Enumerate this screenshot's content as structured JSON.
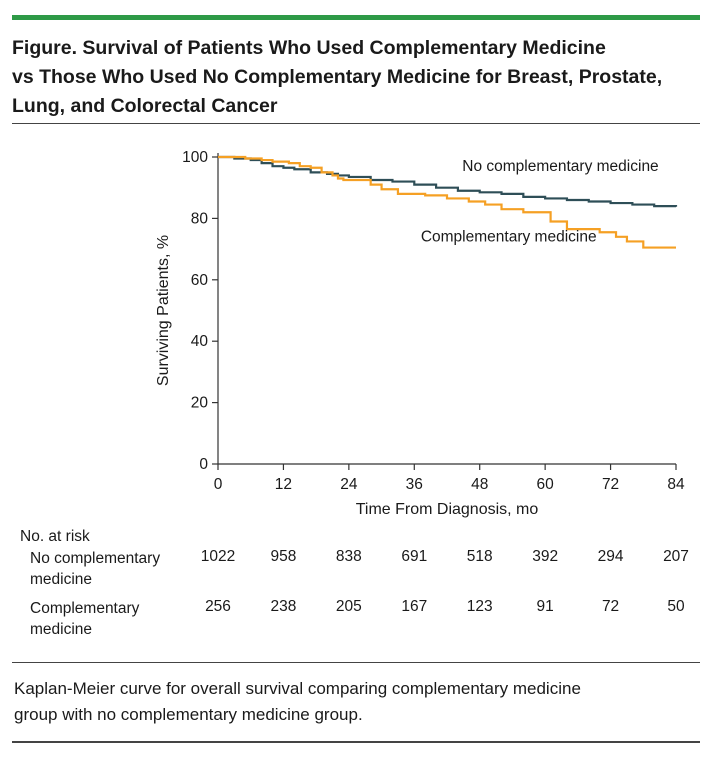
{
  "figure": {
    "title_lines": [
      "Figure. Survival of Patients Who Used Complementary Medicine",
      "vs Those Who Used No Complementary Medicine for Breast, Prostate,",
      "Lung, and Colorectal Cancer"
    ],
    "caption_lines": [
      "Kaplan-Meier curve for overall survival comparing complementary medicine",
      "group with no complementary medicine group."
    ],
    "accent_color": "#2e9a47"
  },
  "chart_data": {
    "type": "line",
    "step": true,
    "xlabel": "Time From Diagnosis, mo",
    "ylabel": "Surviving Patients, %",
    "xlim": [
      0,
      84
    ],
    "ylim": [
      0,
      100
    ],
    "xticks": [
      0,
      12,
      24,
      36,
      48,
      60,
      72,
      84
    ],
    "yticks": [
      0,
      20,
      40,
      60,
      80,
      100
    ],
    "grid": false,
    "series": [
      {
        "name": "No complementary medicine",
        "color": "#2e4e57",
        "x": [
          0,
          3,
          6,
          8,
          10,
          12,
          14,
          17,
          20,
          22,
          24,
          28,
          32,
          36,
          40,
          44,
          48,
          52,
          56,
          60,
          64,
          68,
          72,
          76,
          80,
          84
        ],
        "y": [
          100,
          99.5,
          99,
          98,
          97,
          96.5,
          96,
          95,
          94.5,
          94,
          93.5,
          92.5,
          92,
          91,
          90,
          89,
          88.5,
          88,
          87,
          86.5,
          86,
          85.5,
          85,
          84.5,
          84,
          83.8
        ]
      },
      {
        "name": "Complementary medicine",
        "color": "#f5a024",
        "x": [
          0,
          5,
          8,
          10,
          13,
          15,
          17,
          19,
          21,
          22,
          23,
          28,
          30,
          33,
          38,
          42,
          46,
          49,
          52,
          56,
          61,
          64,
          70,
          73,
          75,
          78,
          84
        ],
        "y": [
          100,
          99.5,
          99,
          98.5,
          98,
          97,
          96.5,
          95,
          94,
          93,
          92.5,
          91,
          89.5,
          88,
          87.5,
          86.5,
          85.5,
          84.5,
          83,
          82,
          79,
          76.5,
          75.5,
          74,
          72.5,
          70.5,
          70.5
        ]
      }
    ],
    "annotations": [
      {
        "text": "No complementary medicine",
        "x": 44.8,
        "y": 95.4
      },
      {
        "text": "Complementary medicine",
        "x": 37.2,
        "y": 72.5
      }
    ],
    "risk_table": {
      "heading": "No. at risk",
      "times": [
        0,
        12,
        24,
        36,
        48,
        60,
        72,
        84
      ],
      "rows": [
        {
          "label_lines": [
            "No complementary",
            "medicine"
          ],
          "values": [
            "1022",
            "958",
            "838",
            "691",
            "518",
            "392",
            "294",
            "207"
          ]
        },
        {
          "label_lines": [
            "Complementary",
            "medicine"
          ],
          "values": [
            "256",
            "238",
            "205",
            "167",
            "123",
            "91",
            "72",
            "50"
          ]
        }
      ]
    }
  }
}
